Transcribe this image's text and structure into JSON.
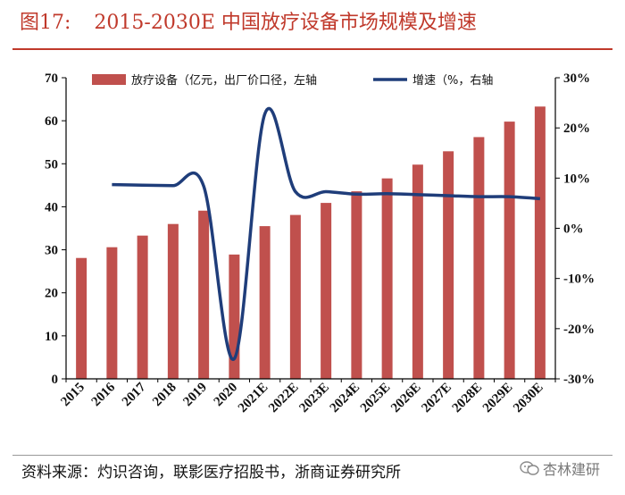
{
  "title": {
    "figure_label": "图17:",
    "text": "2015-2030E 中国放疗设备市场规模及增速"
  },
  "source": "资料来源：灼识咨询，联影医疗招股书，浙商证券研究所",
  "watermark": "杏林建研",
  "colors": {
    "bar": "#c0504d",
    "line": "#1f3d7a",
    "accent": "#c0392b",
    "axis": "#000000"
  },
  "chart_data": {
    "type": "bar",
    "categories": [
      "2015",
      "2016",
      "2017",
      "2018",
      "2019",
      "2020",
      "2021E",
      "2022E",
      "2023E",
      "2024E",
      "2025E",
      "2026E",
      "2027E",
      "2028E",
      "2029E",
      "2030E"
    ],
    "series": [
      {
        "name": "放疗设备（亿元，出厂价口径，左轴",
        "type": "bar",
        "axis": "left",
        "values": [
          28.1,
          30.6,
          33.3,
          36.0,
          39.1,
          28.9,
          35.5,
          38.1,
          40.9,
          43.6,
          46.6,
          49.8,
          52.9,
          56.2,
          59.8,
          63.3
        ]
      },
      {
        "name": "增速（%，右轴",
        "type": "line",
        "axis": "right",
        "values": [
          null,
          8.7,
          8.6,
          8.5,
          8.4,
          -26.0,
          22.8,
          7.3,
          7.3,
          6.8,
          6.9,
          6.7,
          6.5,
          6.3,
          6.3,
          5.9
        ]
      }
    ],
    "y_left": {
      "min": 0,
      "max": 70,
      "ticks": [
        "0",
        "10",
        "20",
        "30",
        "40",
        "50",
        "60",
        "70"
      ]
    },
    "y_right": {
      "min": -30,
      "max": 30,
      "ticks": [
        "-30%",
        "-20%",
        "-10%",
        "0%",
        "10%",
        "20%",
        "30%"
      ]
    },
    "legend": [
      "放疗设备（亿元，出厂价口径，左轴",
      "增速（%，右轴"
    ],
    "legend_position": "top"
  }
}
